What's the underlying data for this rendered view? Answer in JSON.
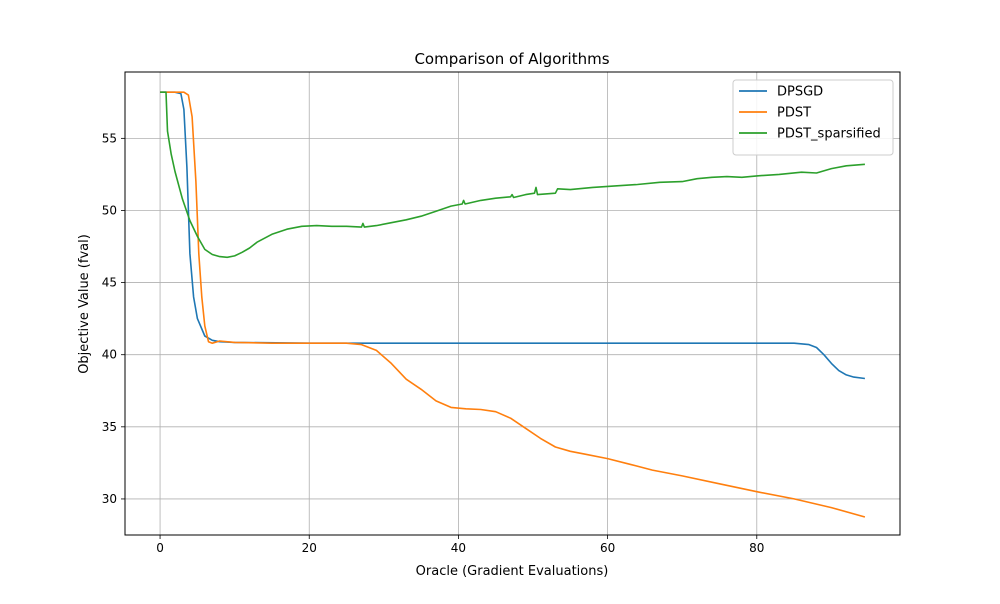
{
  "chart_data": {
    "type": "line",
    "title": "Comparison of Algorithms",
    "xlabel": "Oracle (Gradient Evaluations)",
    "ylabel": "Objective Value (fval)",
    "xlim": [
      -4.7,
      99.2
    ],
    "ylim": [
      27.5,
      59.6
    ],
    "xticks": [
      0,
      20,
      40,
      60,
      80
    ],
    "yticks": [
      30,
      35,
      40,
      45,
      50,
      55
    ],
    "grid": true,
    "legend": "top-right",
    "series": [
      {
        "name": "DPSGD",
        "color": "#1f77b4",
        "points": [
          [
            0,
            58.2
          ],
          [
            2,
            58.2
          ],
          [
            2.8,
            58.1
          ],
          [
            3.2,
            57
          ],
          [
            3.6,
            53
          ],
          [
            4,
            47
          ],
          [
            4.5,
            44
          ],
          [
            5,
            42.5
          ],
          [
            6,
            41.3
          ],
          [
            7,
            41
          ],
          [
            8,
            40.9
          ],
          [
            10,
            40.85
          ],
          [
            20,
            40.8
          ],
          [
            40,
            40.8
          ],
          [
            60,
            40.8
          ],
          [
            80,
            40.8
          ],
          [
            85,
            40.8
          ],
          [
            87,
            40.7
          ],
          [
            88,
            40.5
          ],
          [
            89,
            40
          ],
          [
            90,
            39.4
          ],
          [
            91,
            38.9
          ],
          [
            92,
            38.6
          ],
          [
            93,
            38.45
          ],
          [
            94.5,
            38.35
          ]
        ]
      },
      {
        "name": "PDST",
        "color": "#ff7f0e",
        "points": [
          [
            0,
            58.2
          ],
          [
            3.2,
            58.2
          ],
          [
            3.8,
            58
          ],
          [
            4.3,
            56.5
          ],
          [
            4.8,
            52
          ],
          [
            5.2,
            47
          ],
          [
            5.6,
            44
          ],
          [
            6,
            42
          ],
          [
            6.5,
            40.9
          ],
          [
            7,
            40.8
          ],
          [
            8,
            40.95
          ],
          [
            10,
            40.85
          ],
          [
            15,
            40.8
          ],
          [
            20,
            40.8
          ],
          [
            25,
            40.8
          ],
          [
            27,
            40.7
          ],
          [
            29,
            40.3
          ],
          [
            31,
            39.4
          ],
          [
            33,
            38.3
          ],
          [
            35,
            37.6
          ],
          [
            37,
            36.8
          ],
          [
            39,
            36.35
          ],
          [
            41,
            36.25
          ],
          [
            43,
            36.2
          ],
          [
            45,
            36.05
          ],
          [
            47,
            35.6
          ],
          [
            49,
            34.9
          ],
          [
            51,
            34.2
          ],
          [
            53,
            33.6
          ],
          [
            55,
            33.3
          ],
          [
            57,
            33.1
          ],
          [
            60,
            32.8
          ],
          [
            63,
            32.4
          ],
          [
            66,
            32
          ],
          [
            70,
            31.6
          ],
          [
            75,
            31.05
          ],
          [
            80,
            30.5
          ],
          [
            85,
            30
          ],
          [
            90,
            29.4
          ],
          [
            94.5,
            28.75
          ]
        ]
      },
      {
        "name": "PDST_sparsified",
        "color": "#2ca02c",
        "points": [
          [
            0,
            58.2
          ],
          [
            0.8,
            58.2
          ],
          [
            1,
            55.5
          ],
          [
            1.5,
            53.9
          ],
          [
            2,
            52.7
          ],
          [
            3,
            50.8
          ],
          [
            4,
            49.3
          ],
          [
            5,
            48.2
          ],
          [
            6,
            47.3
          ],
          [
            7,
            46.95
          ],
          [
            8,
            46.8
          ],
          [
            9,
            46.75
          ],
          [
            10,
            46.85
          ],
          [
            11,
            47.1
          ],
          [
            12,
            47.4
          ],
          [
            13,
            47.8
          ],
          [
            15,
            48.35
          ],
          [
            17,
            48.7
          ],
          [
            19,
            48.9
          ],
          [
            21,
            48.95
          ],
          [
            23,
            48.9
          ],
          [
            25,
            48.9
          ],
          [
            27,
            48.85
          ],
          [
            27.2,
            49.1
          ],
          [
            27.4,
            48.85
          ],
          [
            29,
            48.95
          ],
          [
            31,
            49.15
          ],
          [
            33,
            49.35
          ],
          [
            35,
            49.6
          ],
          [
            37,
            49.95
          ],
          [
            39,
            50.3
          ],
          [
            40.5,
            50.45
          ],
          [
            40.7,
            50.7
          ],
          [
            40.9,
            50.45
          ],
          [
            43,
            50.7
          ],
          [
            45,
            50.85
          ],
          [
            47,
            50.95
          ],
          [
            47.2,
            51.1
          ],
          [
            47.4,
            50.9
          ],
          [
            49,
            51.1
          ],
          [
            50.2,
            51.2
          ],
          [
            50.4,
            51.6
          ],
          [
            50.6,
            51.1
          ],
          [
            53,
            51.2
          ],
          [
            53.3,
            51.5
          ],
          [
            55,
            51.45
          ],
          [
            58,
            51.6
          ],
          [
            61,
            51.7
          ],
          [
            64,
            51.8
          ],
          [
            67,
            51.95
          ],
          [
            70,
            52
          ],
          [
            72,
            52.2
          ],
          [
            74,
            52.3
          ],
          [
            76,
            52.35
          ],
          [
            78,
            52.3
          ],
          [
            80,
            52.4
          ],
          [
            83,
            52.5
          ],
          [
            86,
            52.65
          ],
          [
            88,
            52.6
          ],
          [
            90,
            52.9
          ],
          [
            92,
            53.1
          ],
          [
            94.5,
            53.2
          ]
        ]
      }
    ]
  }
}
